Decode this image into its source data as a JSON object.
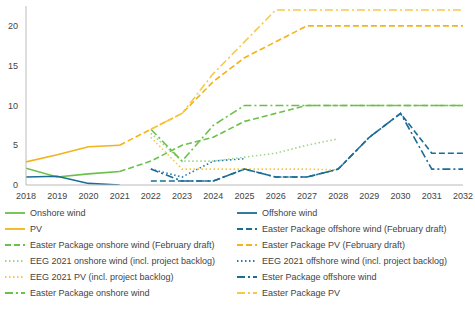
{
  "chart_data": {
    "type": "line",
    "x": [
      2018,
      2019,
      2020,
      2021,
      2022,
      2023,
      2024,
      2025,
      2026,
      2027,
      2028,
      2029,
      2030,
      2031,
      2032
    ],
    "xlim": [
      2018,
      2032
    ],
    "xticks": [
      2018,
      2019,
      2020,
      2021,
      2022,
      2023,
      2024,
      2025,
      2026,
      2027,
      2028,
      2029,
      2030,
      2031,
      2032
    ],
    "ylim": [
      0,
      22.5
    ],
    "yticks": [
      0,
      5,
      10,
      15,
      20
    ],
    "grid": false,
    "legend": "bottom",
    "series": [
      {
        "name": "Onshore wind",
        "color": "#6cc04a",
        "line_style": "solid",
        "values": [
          2.1,
          1.0,
          1.4,
          1.7,
          null,
          null,
          null,
          null,
          null,
          null,
          null,
          null,
          null,
          null,
          null
        ]
      },
      {
        "name": "Offshore wind",
        "color": "#1b6d96",
        "line_style": "solid",
        "values": [
          1.0,
          1.1,
          0.2,
          0.0,
          null,
          null,
          null,
          null,
          null,
          null,
          null,
          null,
          null,
          null,
          null
        ]
      },
      {
        "name": "PV",
        "color": "#f3b31b",
        "line_style": "solid",
        "values": [
          2.9,
          3.8,
          4.8,
          5.0,
          null,
          null,
          null,
          null,
          null,
          null,
          null,
          null,
          null,
          null,
          null
        ]
      },
      {
        "name": "Easter Package offshore wind  (February draft)",
        "color": "#1b6d96",
        "line_style": "dashed",
        "values": [
          null,
          null,
          null,
          null,
          0.5,
          0.5,
          0.5,
          2.0,
          1.0,
          1.0,
          2.0,
          6.0,
          9.0,
          4.0,
          4.0
        ]
      },
      {
        "name": "Easter Package onshore wind  (February draft)",
        "color": "#6cc04a",
        "line_style": "dashed",
        "values": [
          null,
          null,
          null,
          1.7,
          3.0,
          5.0,
          6.0,
          8.0,
          9.0,
          10.0,
          10.0,
          10.0,
          10.0,
          10.0,
          10.0
        ]
      },
      {
        "name": "Easter Package PV (February draft)",
        "color": "#f3b31b",
        "line_style": "dashed",
        "values": [
          null,
          null,
          null,
          5.0,
          7.0,
          9.0,
          13.0,
          16.0,
          18.0,
          20.0,
          20.0,
          20.0,
          20.0,
          20.0,
          20.0
        ]
      },
      {
        "name": "EEG 2021 onshore wind (incl. project backlog)",
        "color": "#9fd68a",
        "line_style": "dotted",
        "values": [
          null,
          null,
          null,
          null,
          6.5,
          3.0,
          3.0,
          3.5,
          4.0,
          5.0,
          5.8,
          null,
          null,
          null,
          null
        ]
      },
      {
        "name": "EEG 2021 offshore wind (incl. project backlog)",
        "color": "#2a7ab0",
        "line_style": "dotted",
        "values": [
          null,
          null,
          null,
          null,
          2.0,
          1.0,
          3.0,
          3.3,
          null,
          null,
          null,
          null,
          null,
          null,
          null
        ]
      },
      {
        "name": "EEG 2021 PV (incl. project backlog)",
        "color": "#f6c84a",
        "line_style": "dotted",
        "values": [
          null,
          null,
          null,
          null,
          6.0,
          2.0,
          2.0,
          2.0,
          2.0,
          2.0,
          1.9,
          null,
          null,
          null,
          null
        ]
      },
      {
        "name": "Ester Package offshore wind",
        "color": "#1b6d96",
        "line_style": "dashdot",
        "values": [
          null,
          null,
          null,
          null,
          2.0,
          0.5,
          0.5,
          2.0,
          1.0,
          1.0,
          2.0,
          6.0,
          9.0,
          2.0,
          2.0
        ]
      },
      {
        "name": "Easter Package onshore wind",
        "color": "#6cc04a",
        "line_style": "dashdot",
        "values": [
          null,
          null,
          null,
          null,
          7.0,
          3.0,
          7.5,
          10.0,
          10.0,
          10.0,
          10.0,
          10.0,
          10.0,
          10.0,
          10.0
        ]
      },
      {
        "name": "Easter Package PV",
        "color": "#f7c948",
        "line_style": "dashdot",
        "values": [
          null,
          null,
          null,
          null,
          7.0,
          9.0,
          14.0,
          18.0,
          22.0,
          22.0,
          22.0,
          22.0,
          22.0,
          22.0,
          22.0
        ]
      }
    ]
  }
}
